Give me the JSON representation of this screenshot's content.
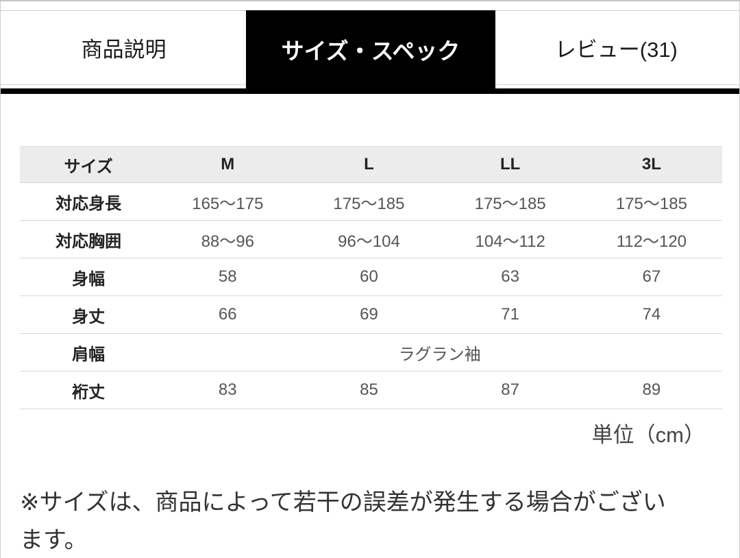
{
  "tabs": {
    "items": [
      {
        "label": "商品説明",
        "active": false
      },
      {
        "label": "サイズ・スペック",
        "active": true
      },
      {
        "label": "レビュー(31)",
        "active": false
      }
    ]
  },
  "size_table": {
    "header": [
      "サイズ",
      "M",
      "L",
      "LL",
      "3L"
    ],
    "rows": [
      {
        "label": "対応身長",
        "values": [
          "165〜175",
          "175〜185",
          "175〜185",
          "175〜185"
        ]
      },
      {
        "label": "対応胸囲",
        "values": [
          "88〜96",
          "96〜104",
          "104〜112",
          "112〜120"
        ]
      },
      {
        "label": "身幅",
        "values": [
          "58",
          "60",
          "63",
          "67"
        ]
      },
      {
        "label": "身丈",
        "values": [
          "66",
          "69",
          "71",
          "74"
        ]
      },
      {
        "label": "肩幅",
        "values": [
          "ラグラン袖"
        ],
        "colspan": true
      },
      {
        "label": "裄丈",
        "values": [
          "83",
          "85",
          "87",
          "89"
        ]
      }
    ],
    "unit_note": "単位（cm）"
  },
  "footnote": {
    "line1": "※サイズは、商品によって若干の誤差が発生する場合がござい",
    "line2": "ます。"
  },
  "colors": {
    "active_tab_bg": "#000000",
    "active_tab_text": "#ffffff",
    "table_header_bg": "#ececec",
    "rule": "#d8d8d8"
  }
}
